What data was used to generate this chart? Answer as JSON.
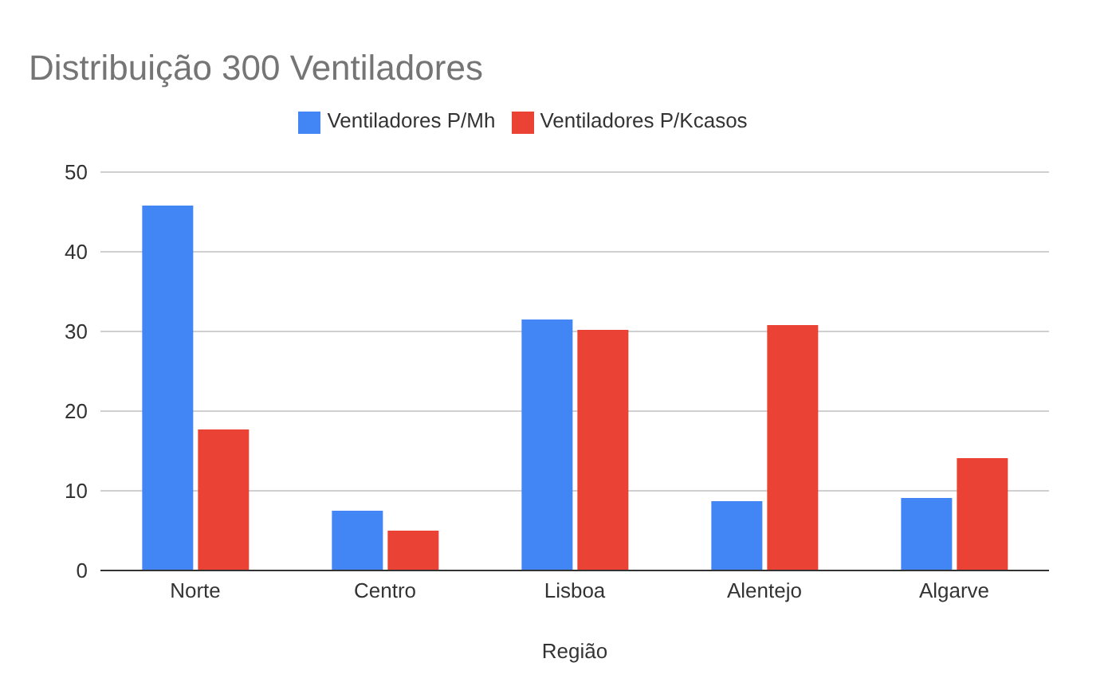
{
  "chart_data": {
    "type": "bar",
    "title": "Distribuição 300 Ventiladores",
    "xlabel": "Região",
    "categories": [
      "Norte",
      "Centro",
      "Lisboa",
      "Alentejo",
      "Algarve"
    ],
    "series": [
      {
        "name": "Ventiladores P/Mh",
        "color": "#4285f4",
        "values": [
          45.8,
          7.5,
          31.5,
          8.7,
          9.1
        ]
      },
      {
        "name": "Ventiladores P/Kcasos",
        "color": "#ea4335",
        "values": [
          17.7,
          5.0,
          30.2,
          30.8,
          14.1
        ]
      }
    ],
    "ylim": [
      0,
      50
    ],
    "yticks": [
      0,
      10,
      20,
      30,
      40,
      50
    ],
    "grid": "y",
    "legend": "top"
  }
}
